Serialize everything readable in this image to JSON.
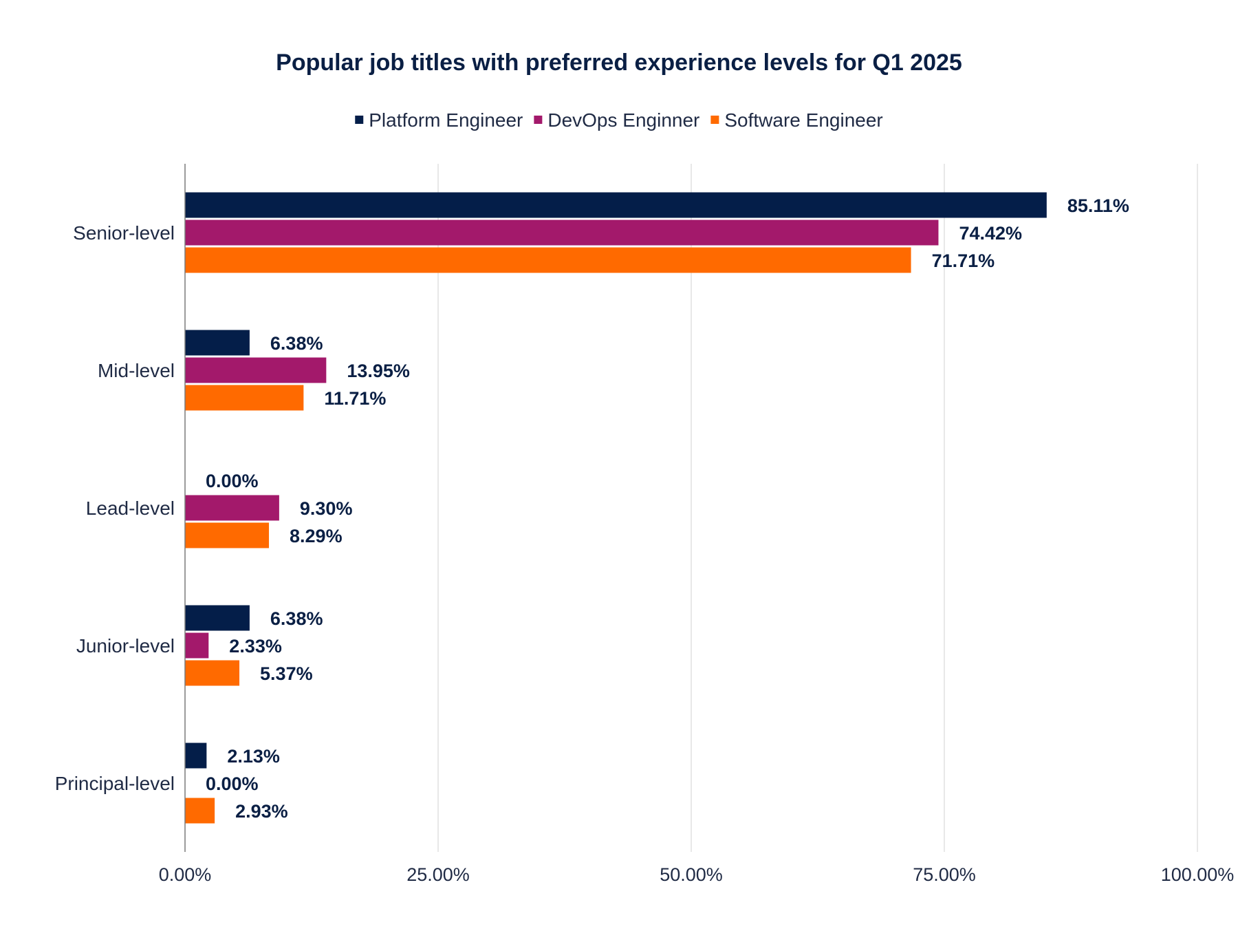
{
  "chart_data": {
    "type": "bar",
    "orientation": "horizontal",
    "title": "Popular job titles with preferred experience levels for Q1 2025",
    "categories": [
      "Senior-level",
      "Mid-level",
      "Lead-level",
      "Junior-level",
      "Principal-level"
    ],
    "series": [
      {
        "name": "Platform Engineer",
        "color": "#041e49",
        "values": [
          85.11,
          6.38,
          0.0,
          6.38,
          2.13
        ],
        "labels": [
          "85.11%",
          "6.38%",
          "0.00%",
          "6.38%",
          "2.13%"
        ]
      },
      {
        "name": "DevOps Enginner",
        "color": "#a3196b",
        "values": [
          74.42,
          13.95,
          9.3,
          2.33,
          0.0
        ],
        "labels": [
          "74.42%",
          "13.95%",
          "9.30%",
          "2.33%",
          "0.00%"
        ]
      },
      {
        "name": "Software Engineer",
        "color": "#ff6a00",
        "values": [
          71.71,
          11.71,
          8.29,
          5.37,
          2.93
        ],
        "labels": [
          "71.71%",
          "11.71%",
          "8.29%",
          "5.37%",
          "2.93%"
        ]
      }
    ],
    "xlim": [
      0,
      100
    ],
    "x_ticks": [
      0,
      25,
      50,
      75,
      100
    ],
    "x_tick_labels": [
      "0.00%",
      "25.00%",
      "50.00%",
      "75.00%",
      "100.00%"
    ],
    "grid": true,
    "legend_position": "top"
  }
}
